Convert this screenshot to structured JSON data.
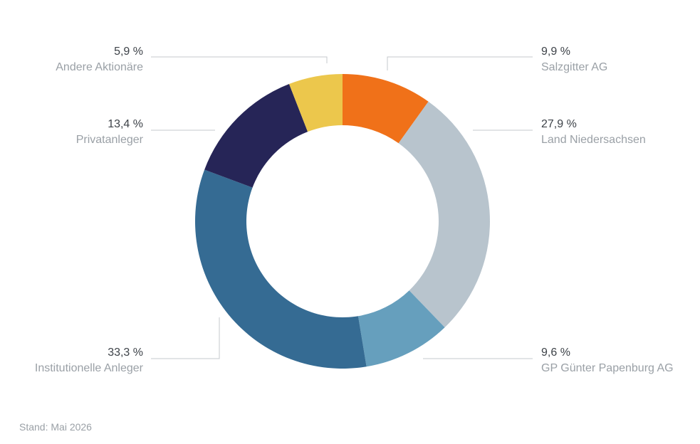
{
  "chart_data": {
    "type": "pie",
    "variant": "donut",
    "slices": [
      {
        "label": "Salzgitter AG",
        "value": 9.9,
        "value_label": "9,9 %",
        "color": "#f07119"
      },
      {
        "label": "Land Niedersachsen",
        "value": 27.9,
        "value_label": "27,9 %",
        "color": "#b8c4cd"
      },
      {
        "label": "GP Günter Papenburg AG",
        "value": 9.6,
        "value_label": "9,6 %",
        "color": "#669fbd"
      },
      {
        "label": "Institutionelle Anleger",
        "value": 33.3,
        "value_label": "33,3 %",
        "color": "#356b93"
      },
      {
        "label": "Privatanleger",
        "value": 13.4,
        "value_label": "13,4 %",
        "color": "#262557"
      },
      {
        "label": "Andere Aktionäre",
        "value": 5.9,
        "value_label": "5,9 %",
        "color": "#ecc74c"
      }
    ],
    "legend": "none",
    "label_placement": "outside with leader lines"
  },
  "footnote": "Stand: Mai 2026"
}
